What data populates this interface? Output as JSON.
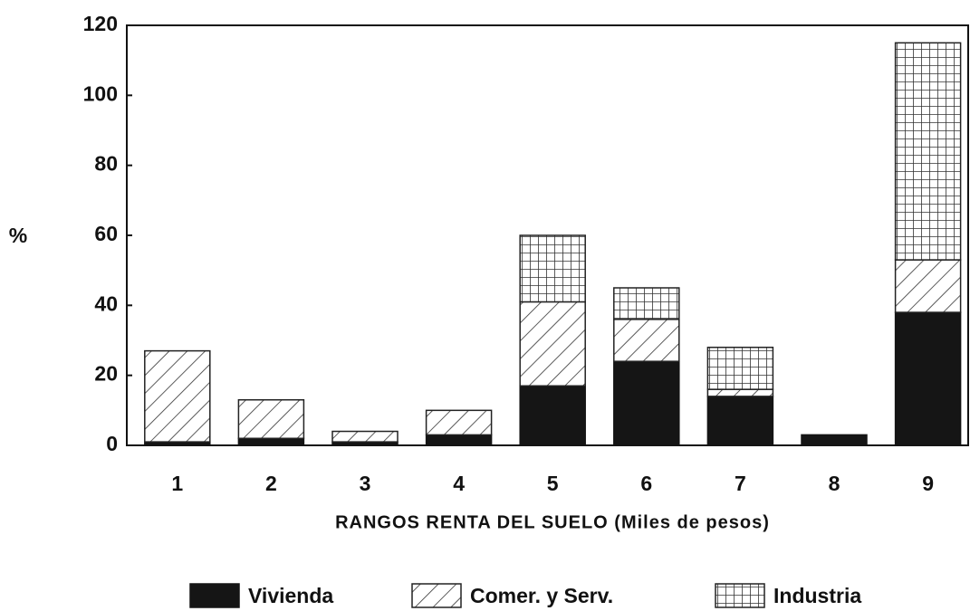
{
  "chart_data": {
    "type": "stacked_bar",
    "ylabel": "%",
    "xlabel": "RANGOS RENTA DEL SUELO (Miles de pesos)",
    "categories": [
      "1",
      "2",
      "3",
      "4",
      "5",
      "6",
      "7",
      "8",
      "9"
    ],
    "series": [
      {
        "name": "Vivienda",
        "color": "#151515",
        "pattern": "solid",
        "values": [
          1,
          2,
          1,
          3,
          17,
          24,
          14,
          3,
          38
        ]
      },
      {
        "name": "Comer. y Serv.",
        "color": "#222222",
        "pattern": "hatch",
        "values": [
          26,
          11,
          3,
          7,
          24,
          12,
          2,
          0,
          15
        ]
      },
      {
        "name": "Industria",
        "color": "#222222",
        "pattern": "grid",
        "values": [
          0,
          0,
          0,
          0,
          19,
          9,
          12,
          0,
          62
        ]
      }
    ],
    "ylim": [
      0,
      120
    ],
    "yticks": [
      0,
      20,
      40,
      60,
      80,
      100,
      120
    ],
    "legend": "bottom"
  }
}
